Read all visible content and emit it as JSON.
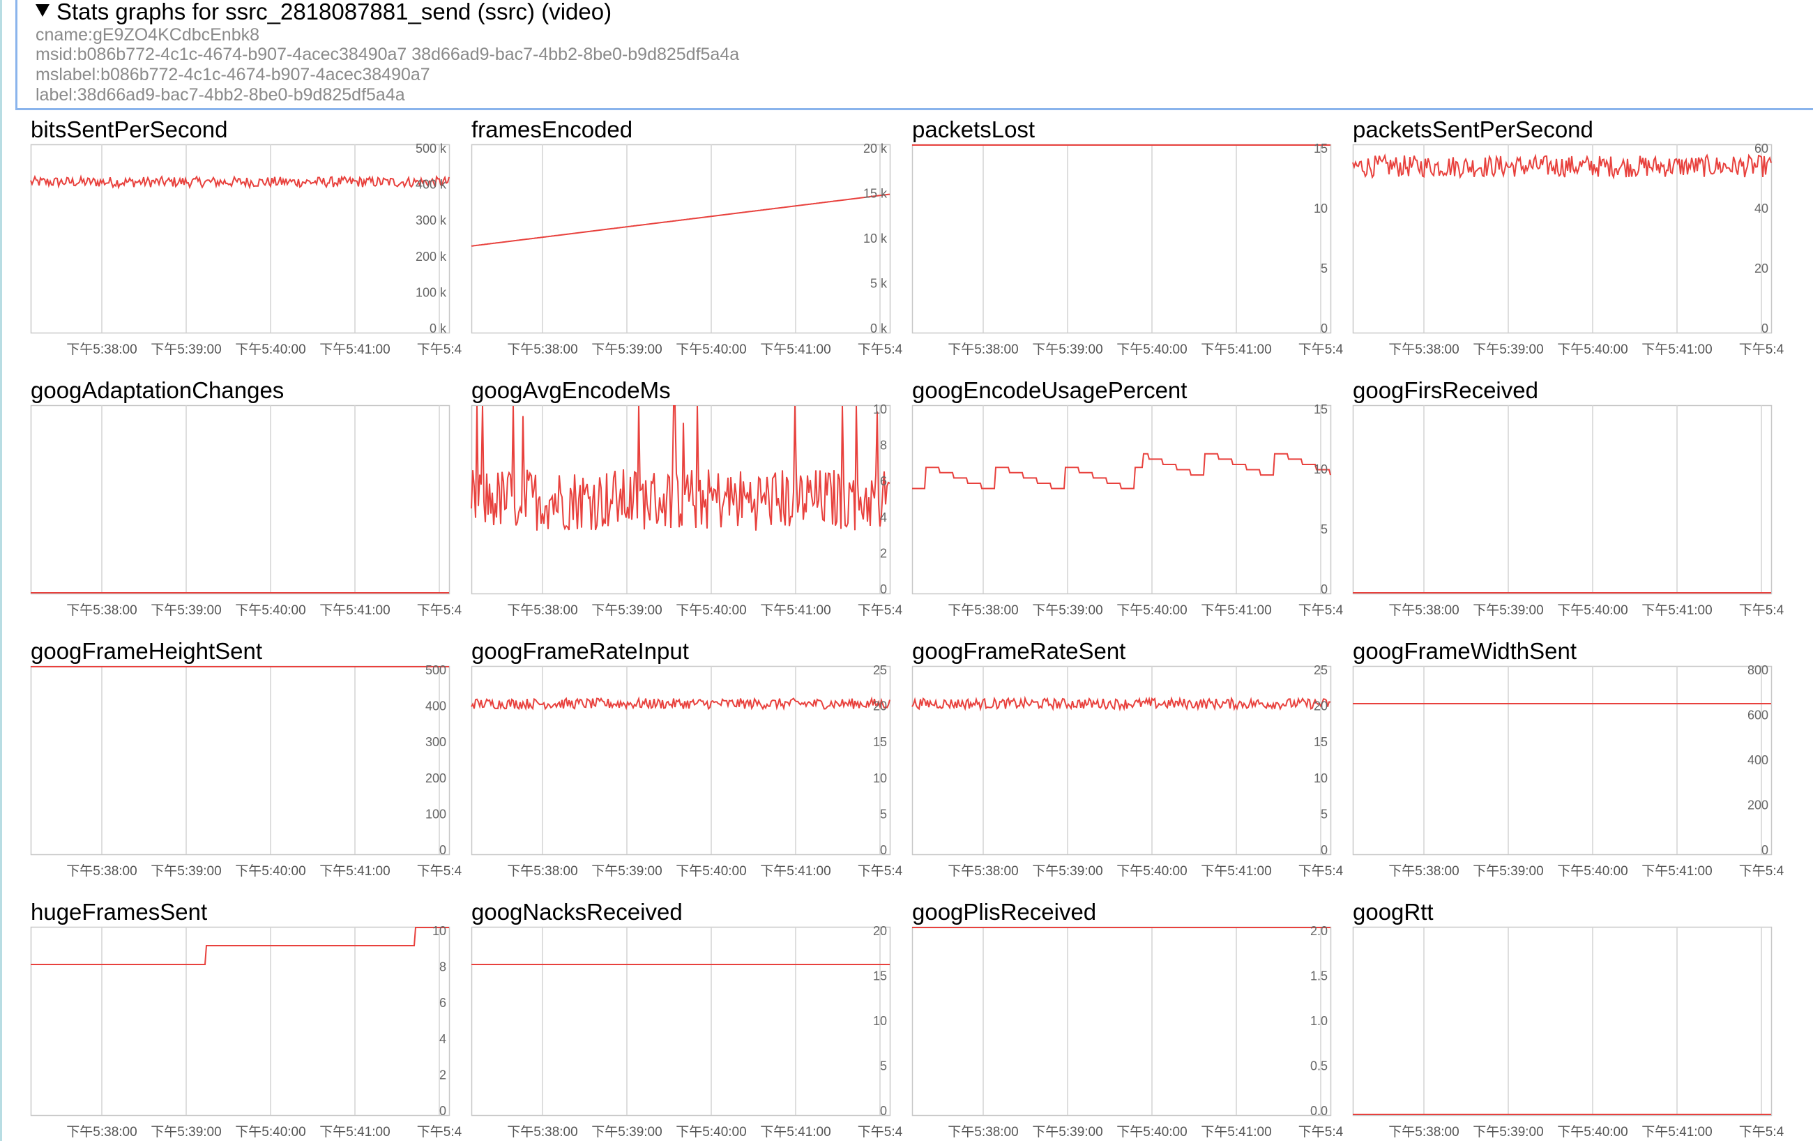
{
  "header": {
    "summary": "Stats graphs for ssrc_2818087881_send (ssrc) (video)",
    "cname": "cname:gE9ZO4KCdbcEnbk8",
    "msid": "msid:b086b772-4c1c-4674-b907-4acec38490a7 38d66ad9-bac7-4bb2-8be0-b9d825df5a4a",
    "mslabel": "mslabel:b086b772-4c1c-4674-b907-4acec38490a7",
    "label": "label:38d66ad9-bac7-4bb2-8be0-b9d825df5a4a"
  },
  "colors": {
    "line": "#e8413d",
    "grid": "#d4d4d4",
    "axis": "#c8c8c8"
  },
  "x_ticks": [
    "下午5:38:00",
    "下午5:39:00",
    "下午5:40:00",
    "下午5:41:00",
    "下午5:4"
  ],
  "chart_data": [
    {
      "type": "line",
      "title": "bitsSentPerSecond",
      "y_ticks": [
        "500 k",
        "400 k",
        "300 k",
        "200 k",
        "100 k",
        "0 k"
      ],
      "ylim": [
        0,
        500000
      ],
      "pattern": "noise",
      "level": 400000,
      "amp": 14000
    },
    {
      "type": "line",
      "title": "framesEncoded",
      "y_ticks": [
        "20 k",
        "15 k",
        "10 k",
        "5 k",
        "0 k"
      ],
      "ylim": [
        0,
        20000
      ],
      "pattern": "linear",
      "start": 9200,
      "end": 14700
    },
    {
      "type": "line",
      "title": "packetsLost",
      "y_ticks": [
        "15",
        "10",
        "5",
        "0"
      ],
      "ylim": [
        0,
        15
      ],
      "pattern": "flat",
      "level": 15
    },
    {
      "type": "line",
      "title": "packetsSentPerSecond",
      "y_ticks": [
        "60",
        "40",
        "20",
        "0"
      ],
      "ylim": [
        0,
        60
      ],
      "pattern": "noise",
      "level": 53,
      "amp": 3.5
    },
    {
      "type": "line",
      "title": "googAdaptationChanges",
      "y_ticks": [],
      "ylim": [
        0,
        1
      ],
      "pattern": "flat",
      "level": 0
    },
    {
      "type": "line",
      "title": "googAvgEncodeMs",
      "y_ticks": [
        "10",
        "8",
        "6",
        "4",
        "2",
        "0"
      ],
      "ylim": [
        0,
        9
      ],
      "pattern": "spiky",
      "level": 4.5,
      "amp": 1.5
    },
    {
      "type": "line",
      "title": "googEncodeUsagePercent",
      "y_ticks": [
        "15",
        "10",
        "5",
        "0"
      ],
      "ylim": [
        0,
        15
      ],
      "pattern": "steps",
      "level": 9.2,
      "amp": 1.2
    },
    {
      "type": "line",
      "title": "googFirsReceived",
      "y_ticks": [],
      "ylim": [
        0,
        1
      ],
      "pattern": "flat",
      "level": 0
    },
    {
      "type": "line",
      "title": "googFrameHeightSent",
      "y_ticks": [
        "500",
        "400",
        "300",
        "200",
        "100",
        "0"
      ],
      "ylim": [
        0,
        480
      ],
      "pattern": "flat",
      "level": 480
    },
    {
      "type": "line",
      "title": "googFrameRateInput",
      "y_ticks": [
        "25",
        "20",
        "15",
        "10",
        "5",
        "0"
      ],
      "ylim": [
        0,
        25
      ],
      "pattern": "noise",
      "level": 20,
      "amp": 0.7
    },
    {
      "type": "line",
      "title": "googFrameRateSent",
      "y_ticks": [
        "25",
        "20",
        "15",
        "10",
        "5",
        "0"
      ],
      "ylim": [
        0,
        25
      ],
      "pattern": "noise",
      "level": 20,
      "amp": 0.7
    },
    {
      "type": "line",
      "title": "googFrameWidthSent",
      "y_ticks": [
        "800",
        "600",
        "400",
        "200",
        "0"
      ],
      "ylim": [
        0,
        800
      ],
      "pattern": "flat",
      "level": 640
    },
    {
      "type": "line",
      "title": "hugeFramesSent",
      "y_ticks": [
        "10",
        "8",
        "6",
        "4",
        "2",
        "0"
      ],
      "ylim": [
        0,
        10
      ],
      "pattern": "stairs",
      "steps": [
        [
          0,
          8
        ],
        [
          0.42,
          9
        ],
        [
          0.92,
          10
        ]
      ]
    },
    {
      "type": "line",
      "title": "googNacksReceived",
      "y_ticks": [
        "20",
        "15",
        "10",
        "5",
        "0"
      ],
      "ylim": [
        0,
        20
      ],
      "pattern": "flat",
      "level": 16
    },
    {
      "type": "line",
      "title": "googPlisReceived",
      "y_ticks": [
        "2.0",
        "1.5",
        "1.0",
        "0.5",
        "0.0"
      ],
      "ylim": [
        0,
        2
      ],
      "pattern": "flat",
      "level": 2
    },
    {
      "type": "line",
      "title": "googRtt",
      "y_ticks": [],
      "ylim": [
        0,
        1
      ],
      "pattern": "flat",
      "level": 0
    }
  ]
}
